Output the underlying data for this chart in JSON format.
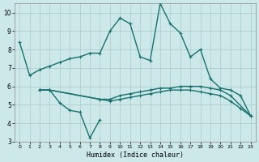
{
  "xlabel": "Humidex (Indice chaleur)",
  "ylabel": "",
  "background_color": "#cce8e8",
  "grid_color": "#aacaca",
  "line_color": "#1a7070",
  "xlim": [
    -0.5,
    23.5
  ],
  "ylim": [
    3,
    10.5
  ],
  "yticks": [
    3,
    4,
    5,
    6,
    7,
    8,
    9,
    10
  ],
  "xticks": [
    0,
    1,
    2,
    3,
    4,
    5,
    6,
    7,
    8,
    9,
    10,
    11,
    12,
    13,
    14,
    15,
    16,
    17,
    18,
    19,
    20,
    21,
    22,
    23
  ],
  "line1_x": [
    0,
    1,
    2,
    3,
    4,
    5,
    6,
    7,
    8,
    9,
    10,
    11,
    12,
    13,
    14,
    15,
    16,
    17,
    18,
    19,
    20,
    21,
    22,
    23
  ],
  "line1_y": [
    8.4,
    6.6,
    6.9,
    7.1,
    7.3,
    7.5,
    7.6,
    7.8,
    7.8,
    9.0,
    9.7,
    9.4,
    7.6,
    7.4,
    10.5,
    9.4,
    8.9,
    7.6,
    8.0,
    6.4,
    5.9,
    5.8,
    5.5,
    4.4
  ],
  "line2_x": [
    2,
    3,
    4,
    5,
    6,
    7,
    8
  ],
  "line2_y": [
    5.8,
    5.8,
    5.1,
    4.7,
    4.6,
    3.2,
    4.2
  ],
  "line3_x": [
    2,
    3,
    8,
    9,
    10,
    11,
    12,
    13,
    14,
    15,
    16,
    17,
    18,
    19,
    20,
    21,
    23
  ],
  "line3_y": [
    5.8,
    5.8,
    5.3,
    5.3,
    5.5,
    5.6,
    5.7,
    5.8,
    5.9,
    5.9,
    6.0,
    6.0,
    6.0,
    5.9,
    5.8,
    5.5,
    4.4
  ],
  "line4_x": [
    2,
    3,
    9,
    10,
    11,
    12,
    13,
    14,
    15,
    16,
    17,
    18,
    19,
    20,
    21,
    22,
    23
  ],
  "line4_y": [
    5.8,
    5.8,
    5.2,
    5.3,
    5.4,
    5.5,
    5.6,
    5.7,
    5.8,
    5.8,
    5.8,
    5.7,
    5.6,
    5.5,
    5.2,
    4.8,
    4.4
  ]
}
